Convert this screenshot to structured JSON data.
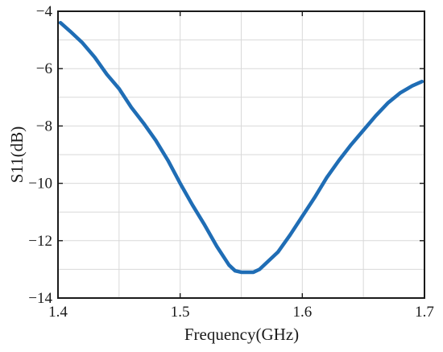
{
  "chart_data": {
    "type": "line",
    "title": "",
    "xlabel": "Frequency(GHz)",
    "ylabel": "S11(dB)",
    "xlim": [
      1.4,
      1.7
    ],
    "ylim": [
      -14,
      -4
    ],
    "xticks": [
      1.4,
      1.5,
      1.6,
      1.7
    ],
    "xtick_labels": [
      "1.4",
      "1.5",
      "1.6",
      "1.7"
    ],
    "yticks": [
      -14,
      -12,
      -10,
      -8,
      -6,
      -4
    ],
    "ytick_labels": [
      "−14",
      "−12",
      "−10",
      "−8",
      "−6",
      "−4"
    ],
    "grid": true,
    "line_color": "#1f6db5",
    "series": [
      {
        "x": [
          1.402,
          1.41,
          1.42,
          1.43,
          1.44,
          1.45,
          1.46,
          1.47,
          1.48,
          1.49,
          1.5,
          1.51,
          1.52,
          1.53,
          1.54,
          1.545,
          1.55,
          1.555,
          1.56,
          1.565,
          1.57,
          1.58,
          1.59,
          1.6,
          1.61,
          1.62,
          1.63,
          1.64,
          1.65,
          1.66,
          1.67,
          1.68,
          1.69,
          1.698
        ],
        "y": [
          -4.4,
          -4.7,
          -5.1,
          -5.6,
          -6.2,
          -6.7,
          -7.35,
          -7.9,
          -8.5,
          -9.2,
          -10.0,
          -10.75,
          -11.45,
          -12.2,
          -12.85,
          -13.05,
          -13.1,
          -13.1,
          -13.1,
          -13.0,
          -12.8,
          -12.4,
          -11.8,
          -11.15,
          -10.5,
          -9.8,
          -9.2,
          -8.65,
          -8.15,
          -7.65,
          -7.2,
          -6.85,
          -6.6,
          -6.45
        ]
      }
    ]
  }
}
